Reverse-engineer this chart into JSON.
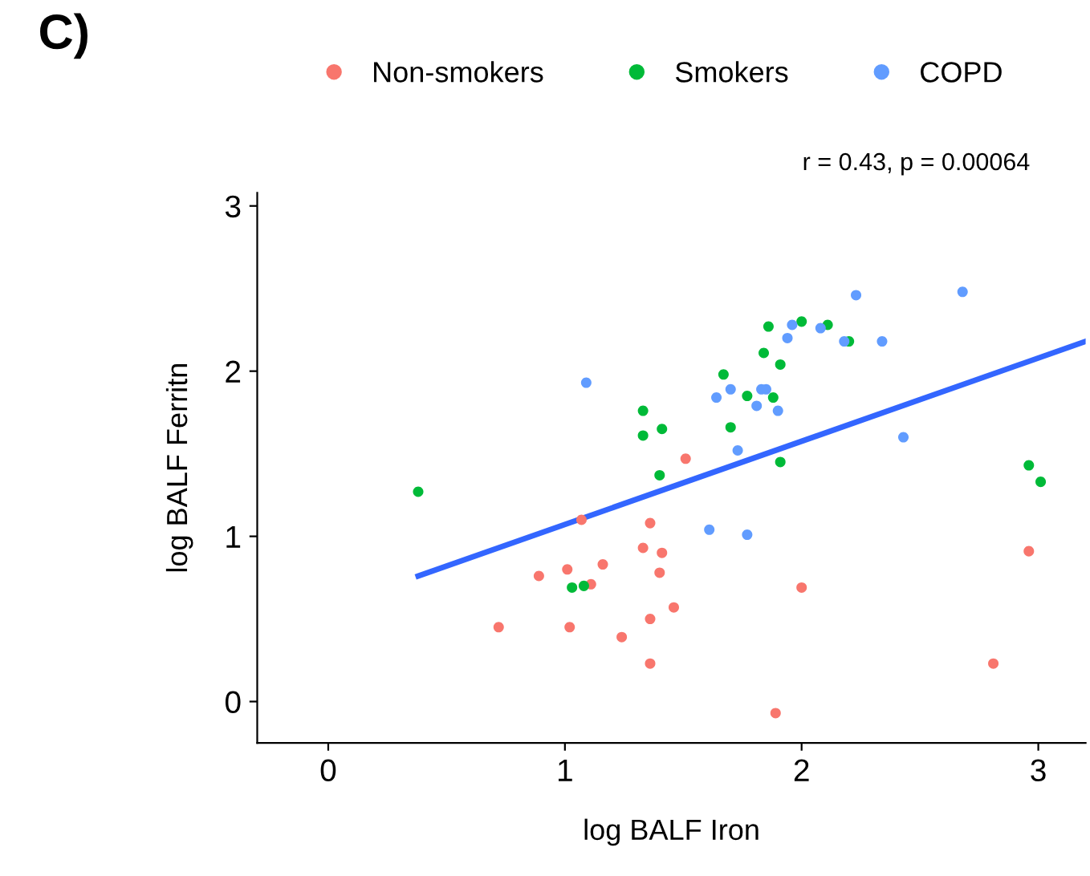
{
  "chart_data": {
    "type": "scatter",
    "xlabel": "log BALF Iron",
    "ylabel": "log BALF Ferritn",
    "annotations": [
      "C)",
      "r = 0.43, p = 0.00064"
    ],
    "xlim": [
      -0.3,
      3.2
    ],
    "ylim": [
      -0.25,
      3.08
    ],
    "xticks": [
      0,
      1,
      2,
      3
    ],
    "yticks": [
      0,
      1,
      2,
      3
    ],
    "grid": false,
    "legend": "top",
    "marker": "circle",
    "series": [
      {
        "name": "Non-smokers",
        "color": "#f8766d",
        "x": [
          1.51,
          1.07,
          1.36,
          1.33,
          1.41,
          1.4,
          1.16,
          1.01,
          0.89,
          1.11,
          1.46,
          1.36,
          0.72,
          1.02,
          1.24,
          1.36,
          2.96,
          2.0,
          2.81,
          1.89
        ],
        "values": [
          1.47,
          1.1,
          1.08,
          0.93,
          0.9,
          0.78,
          0.83,
          0.8,
          0.76,
          0.71,
          0.57,
          0.5,
          0.45,
          0.45,
          0.39,
          0.23,
          0.91,
          0.69,
          0.23,
          -0.07
        ]
      },
      {
        "name": "Smokers",
        "color": "#00ba38",
        "x": [
          0.38,
          1.33,
          1.33,
          1.41,
          1.4,
          1.67,
          1.7,
          1.03,
          1.08,
          1.86,
          2.0,
          2.11,
          2.2,
          1.84,
          1.91,
          1.77,
          1.88,
          1.91,
          2.96,
          3.01
        ],
        "values": [
          1.27,
          1.76,
          1.61,
          1.65,
          1.37,
          1.98,
          1.66,
          0.69,
          0.7,
          2.27,
          2.3,
          2.28,
          2.18,
          2.11,
          2.04,
          1.85,
          1.84,
          1.45,
          1.43,
          1.33
        ]
      },
      {
        "name": "COPD",
        "color": "#619cff",
        "x": [
          1.09,
          1.7,
          1.64,
          1.73,
          1.61,
          1.77,
          2.23,
          2.68,
          1.96,
          2.08,
          1.94,
          2.18,
          2.34,
          1.83,
          1.85,
          1.81,
          1.9,
          2.43
        ],
        "values": [
          1.93,
          1.89,
          1.84,
          1.52,
          1.04,
          1.01,
          2.46,
          2.48,
          2.28,
          2.26,
          2.2,
          2.18,
          2.18,
          1.89,
          1.89,
          1.79,
          1.76,
          1.6
        ]
      },
      {
        "type": "line",
        "color": "#3366ff",
        "marker": "none",
        "x": [
          0.38,
          3.2
        ],
        "values": [
          0.76,
          2.18
        ]
      }
    ]
  }
}
